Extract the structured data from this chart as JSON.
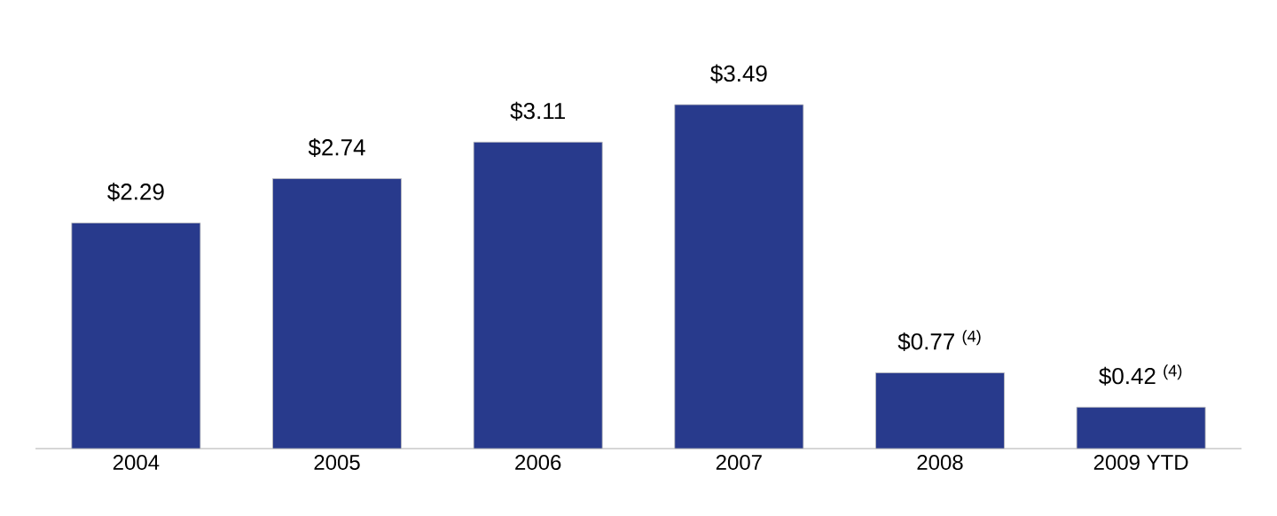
{
  "chart_data": {
    "type": "bar",
    "categories": [
      "2004",
      "2005",
      "2006",
      "2007",
      "2008",
      "2009 YTD"
    ],
    "values": [
      2.29,
      2.74,
      3.11,
      3.49,
      0.77,
      0.42
    ],
    "color": "#283a8c",
    "value_labels": [
      "$2.29",
      "$2.74",
      "$3.11",
      "$3.49",
      "$0.77 $^{(4)}$",
      "$0.42 $^{(4)}$"
    ]
  }
}
